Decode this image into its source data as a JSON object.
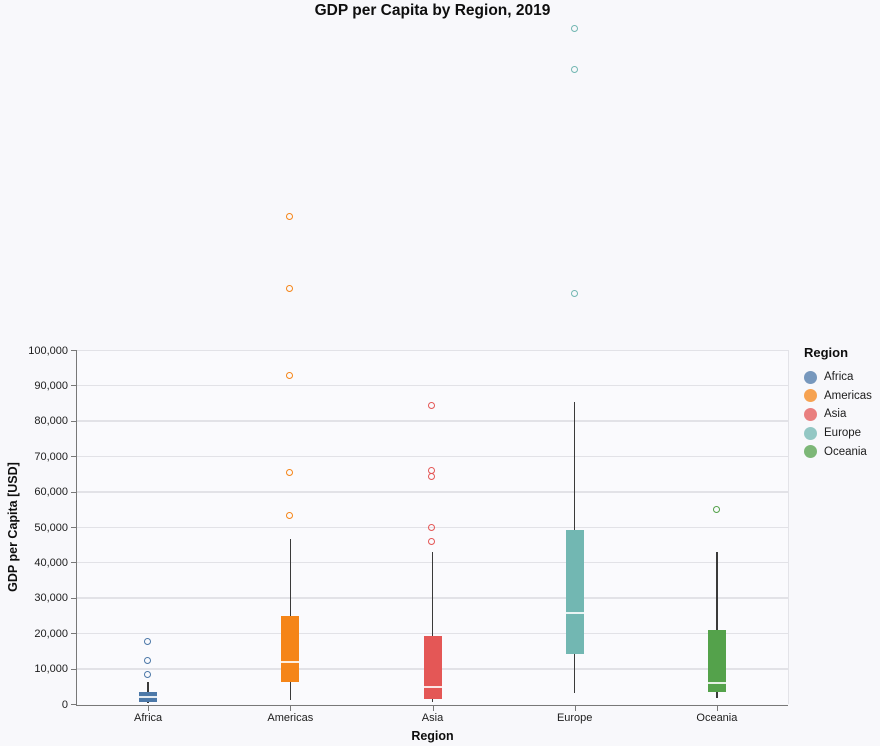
{
  "title": "GDP per Capita by Region, 2019",
  "chart_data": {
    "type": "boxplot",
    "title": "GDP per Capita by Region, 2019",
    "xlabel": "Region",
    "ylabel": "GDP per Capita [USD]",
    "ylim": [
      0,
      100000
    ],
    "ytick_step": 10000,
    "grid": true,
    "legend_position": "right",
    "legend_title": "Region",
    "categories": [
      "Africa",
      "Americas",
      "Asia",
      "Europe",
      "Oceania"
    ],
    "series": [
      {
        "name": "Africa",
        "color": "#4c78a8",
        "whisker_low": 250,
        "q1": 600,
        "median": 2000,
        "q3": 3400,
        "whisker_high": 6200,
        "outliers": [
          8200,
          12000,
          17500
        ]
      },
      {
        "name": "Americas",
        "color": "#f58518",
        "whisker_low": 1100,
        "q1": 6300,
        "median": 11900,
        "q3": 25000,
        "whisker_high": 46600,
        "outliers": [
          53100,
          65200,
          92600,
          117200,
          137600
        ]
      },
      {
        "name": "Asia",
        "color": "#e45756",
        "whisker_low": 600,
        "q1": 1400,
        "median": 4800,
        "q3": 19200,
        "whisker_high": 43000,
        "outliers": [
          45800,
          49700,
          64100,
          65800,
          84200
        ]
      },
      {
        "name": "Europe",
        "color": "#72b7b2",
        "whisker_low": 3100,
        "q1": 14100,
        "median": 25700,
        "q3": 49200,
        "whisker_high": 85300,
        "outliers": [
          115800,
          179100,
          190700
        ]
      },
      {
        "name": "Oceania",
        "color": "#54a24b",
        "whisker_low": 1700,
        "q1": 3400,
        "median": 5900,
        "q3": 21000,
        "whisker_high": 43000,
        "outliers": [
          54800
        ]
      }
    ]
  }
}
